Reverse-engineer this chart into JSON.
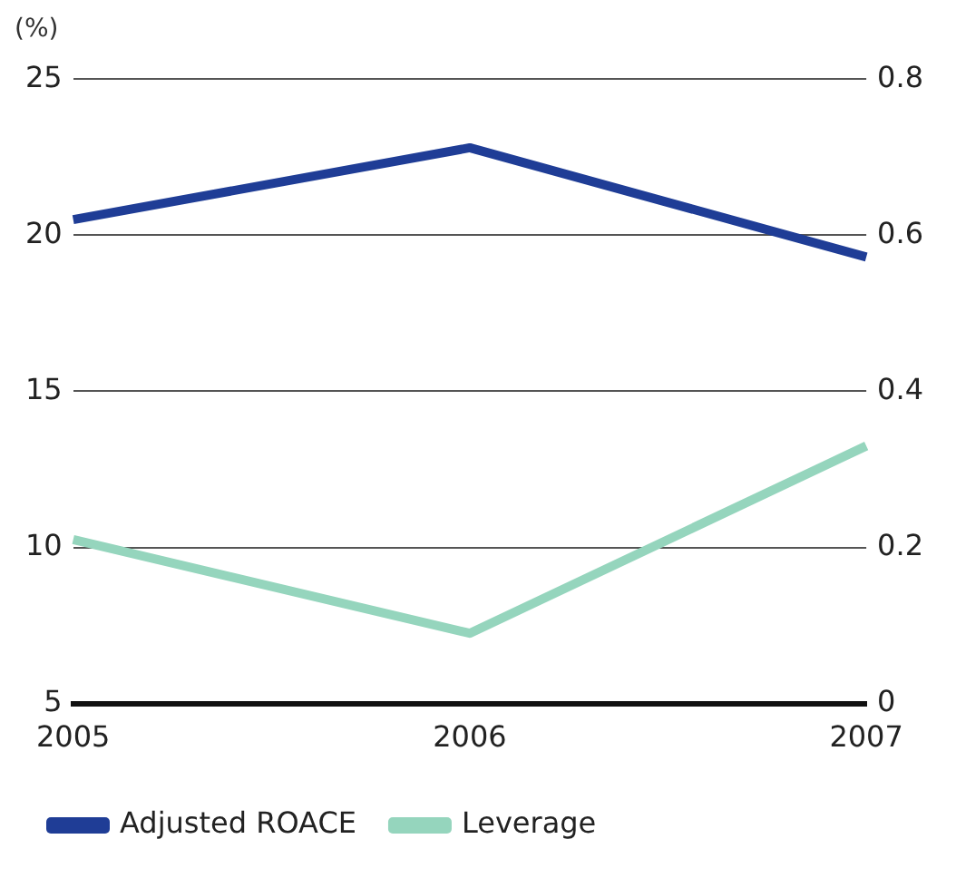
{
  "chart_data": {
    "type": "line",
    "ylabel": "(%)",
    "categories": [
      "2005",
      "2006",
      "2007"
    ],
    "series": [
      {
        "name": "Adjusted ROACE",
        "color": "#1f3d96",
        "values": [
          20.5,
          22.8,
          19.3
        ]
      },
      {
        "name": "Leverage",
        "color": "#95d5bd",
        "values": [
          0.21,
          0.09,
          0.33
        ],
        "axis": "y2"
      }
    ],
    "ylim": [
      5,
      25
    ],
    "yticks": [
      5,
      10,
      15,
      20,
      25
    ],
    "y2lim": [
      0,
      0.8
    ],
    "y2ticks": [
      0,
      0.2,
      0.4,
      0.6,
      0.8
    ],
    "grid": "y",
    "legend": "bottom",
    "marker": "none",
    "line_style": "solid"
  }
}
